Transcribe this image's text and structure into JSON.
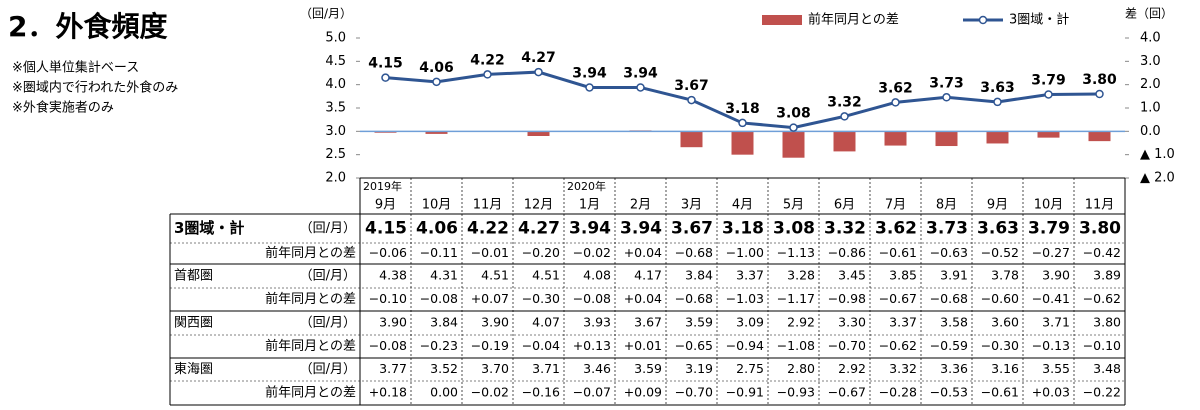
{
  "header": {
    "title": "2．外食頻度",
    "notes": [
      "※個人単位集計ベース",
      "※圏域内で行われた外食のみ",
      "※外食実施者のみ"
    ]
  },
  "chart_data": {
    "type": "bar_line",
    "y_label": "（回/月）",
    "y2_label": "差（回）",
    "categories": [
      "9月",
      "10月",
      "11月",
      "12月",
      "1月",
      "2月",
      "3月",
      "4月",
      "5月",
      "6月",
      "7月",
      "8月",
      "9月",
      "10月",
      "11月"
    ],
    "year_labels": [
      "2019年",
      null,
      null,
      null,
      "2020年",
      null,
      null,
      null,
      null,
      null,
      null,
      null,
      null,
      null,
      null
    ],
    "series": [
      {
        "name": "3圏域・計",
        "type": "line",
        "color": "#2f5592",
        "values": [
          4.15,
          4.06,
          4.22,
          4.27,
          3.94,
          3.94,
          3.67,
          3.18,
          3.08,
          3.32,
          3.62,
          3.73,
          3.63,
          3.79,
          3.8
        ],
        "value_labels": [
          "4.15",
          "4.06",
          "4.22",
          "4.27",
          "3.94",
          "3.94",
          "3.67",
          "3.18",
          "3.08",
          "3.32",
          "3.62",
          "3.73",
          "3.63",
          "3.79",
          "3.80"
        ]
      },
      {
        "name": "前年同月との差",
        "type": "bar",
        "axis": "y2",
        "color": "#c0504d",
        "values": [
          -0.06,
          -0.11,
          -0.01,
          -0.2,
          -0.02,
          0.04,
          -0.68,
          -1.0,
          -1.13,
          -0.86,
          -0.61,
          -0.63,
          -0.52,
          -0.27,
          -0.42
        ]
      }
    ],
    "ylim": [
      2.0,
      5.0
    ],
    "yticks": [
      {
        "value": 2,
        "label": "2.0"
      },
      2.5,
      {
        "value": 3,
        "label": "3.0"
      },
      3.5,
      {
        "value": 4,
        "label": "4.0"
      },
      4.5,
      {
        "value": 5,
        "label": "5.0"
      }
    ],
    "y2lim": [
      -2.0,
      4.0
    ],
    "y2ticks": [
      {
        "value": 4,
        "label": "4.0"
      },
      {
        "value": 3,
        "label": "3.0"
      },
      {
        "value": 2,
        "label": "2.0"
      },
      {
        "value": 1,
        "label": "1.0"
      },
      {
        "value": 0,
        "label": "0.0"
      },
      {
        "value": -1,
        "label": "▲ 1.0"
      },
      {
        "value": -2,
        "label": "▲ 2.0"
      }
    ]
  },
  "table": {
    "rows": [
      {
        "label": "3圏域・計",
        "unit": "（回/月）",
        "values": [
          "4.15",
          "4.06",
          "4.22",
          "4.27",
          "3.94",
          "3.94",
          "3.67",
          "3.18",
          "3.08",
          "3.32",
          "3.62",
          "3.73",
          "3.63",
          "3.79",
          "3.80"
        ]
      },
      {
        "label": "前年同月との差",
        "values": [
          "−0.06",
          "−0.11",
          "−0.01",
          "−0.20",
          "−0.02",
          "+0.04",
          "−0.68",
          "−1.00",
          "−1.13",
          "−0.86",
          "−0.61",
          "−0.63",
          "−0.52",
          "−0.27",
          "−0.42"
        ]
      },
      {
        "label": "首都圏",
        "unit": "（回/月）",
        "values": [
          "4.38",
          "4.31",
          "4.51",
          "4.51",
          "4.08",
          "4.17",
          "3.84",
          "3.37",
          "3.28",
          "3.45",
          "3.85",
          "3.91",
          "3.78",
          "3.90",
          "3.89"
        ]
      },
      {
        "label": "前年同月との差",
        "values": [
          "−0.10",
          "−0.08",
          "+0.07",
          "−0.30",
          "−0.08",
          "+0.04",
          "−0.68",
          "−1.03",
          "−1.17",
          "−0.98",
          "−0.67",
          "−0.68",
          "−0.60",
          "−0.41",
          "−0.62"
        ]
      },
      {
        "label": "関西圏",
        "unit": "（回/月）",
        "values": [
          "3.90",
          "3.84",
          "3.90",
          "4.07",
          "3.93",
          "3.67",
          "3.59",
          "3.09",
          "2.92",
          "3.30",
          "3.37",
          "3.58",
          "3.60",
          "3.71",
          "3.80"
        ]
      },
      {
        "label": "前年同月との差",
        "values": [
          "−0.08",
          "−0.23",
          "−0.19",
          "−0.04",
          "+0.13",
          "+0.01",
          "−0.65",
          "−0.94",
          "−1.08",
          "−0.70",
          "−0.62",
          "−0.59",
          "−0.30",
          "−0.13",
          "−0.10"
        ]
      },
      {
        "label": "東海圏",
        "unit": "（回/月）",
        "values": [
          "3.77",
          "3.52",
          "3.70",
          "3.71",
          "3.46",
          "3.59",
          "3.19",
          "2.75",
          "2.80",
          "2.92",
          "3.32",
          "3.36",
          "3.16",
          "3.55",
          "3.48"
        ]
      },
      {
        "label": "前年同月との差",
        "values": [
          "+0.18",
          "0.00",
          "−0.02",
          "−0.16",
          "−0.07",
          "+0.09",
          "−0.70",
          "−0.91",
          "−0.93",
          "−0.67",
          "−0.28",
          "−0.53",
          "−0.61",
          "+0.03",
          "−0.22"
        ]
      }
    ]
  }
}
